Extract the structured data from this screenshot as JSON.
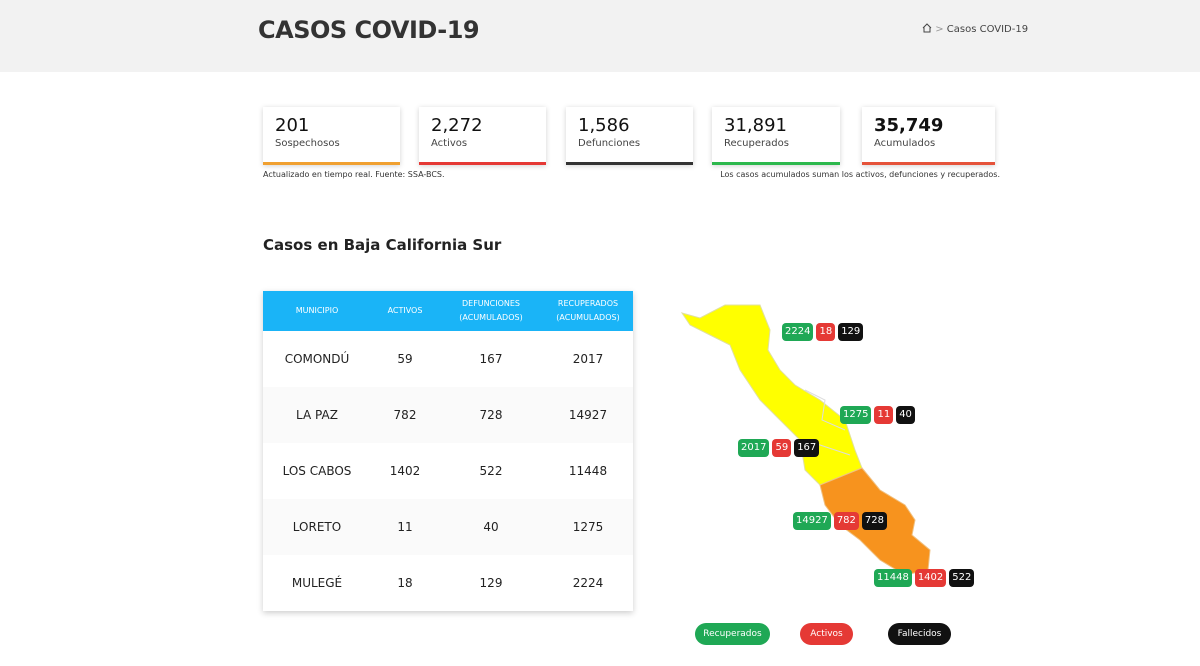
{
  "header": {
    "title": "CASOS COVID-19",
    "breadcrumb": "Casos COVID-19"
  },
  "stats": [
    {
      "value": "201",
      "label": "Sospechosos"
    },
    {
      "value": "2,272",
      "label": "Activos"
    },
    {
      "value": "1,586",
      "label": "Defunciones"
    },
    {
      "value": "31,891",
      "label": "Recuperados"
    },
    {
      "value": "35,749",
      "label": "Acumulados"
    }
  ],
  "notes": {
    "left": "Actualizado en tiempo real. Fuente: SSA-BCS.",
    "right": "Los casos acumulados suman los activos, defunciones y recuperados."
  },
  "section_title": "Casos en Baja California Sur",
  "table": {
    "headers": [
      "MUNICIPIO",
      "ACTIVOS",
      "DEFUNCIONES (ACUMULADOS)",
      "RECUPERADOS (ACUMULADOS)"
    ],
    "rows": [
      [
        "COMONDÚ",
        "59",
        "167",
        "2017"
      ],
      [
        "LA PAZ",
        "782",
        "728",
        "14927"
      ],
      [
        "LOS CABOS",
        "1402",
        "522",
        "11448"
      ],
      [
        "LORETO",
        "11",
        "40",
        "1275"
      ],
      [
        "MULEGÉ",
        "18",
        "129",
        "2224"
      ]
    ]
  },
  "legend": [
    "Recuperados",
    "Activos",
    "Fallecidos"
  ]
}
